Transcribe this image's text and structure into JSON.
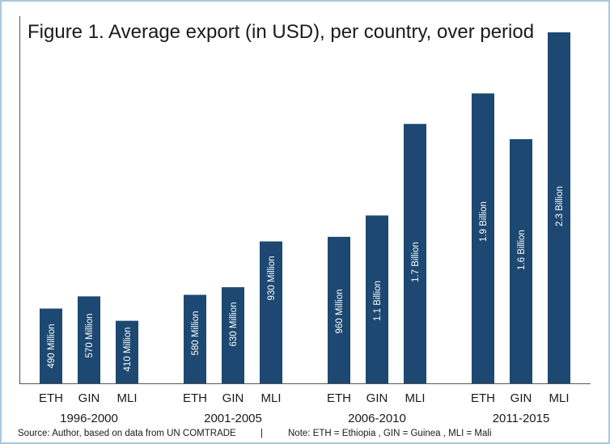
{
  "chart_data": {
    "type": "bar",
    "title": "Figure 1.  Average export (in USD), per country, over period",
    "xlabel": "",
    "ylabel": "",
    "ylim": [
      0,
      2.3
    ],
    "unit": "billion USD",
    "bar_color": "#1c4871",
    "groups": [
      {
        "period": "1996-2000",
        "bars": [
          {
            "country": "ETH",
            "value": 0.49,
            "label": "490 Million"
          },
          {
            "country": "GIN",
            "value": 0.57,
            "label": "570 Million"
          },
          {
            "country": "MLI",
            "value": 0.41,
            "label": "410 Million"
          }
        ]
      },
      {
        "period": "2001-2005",
        "bars": [
          {
            "country": "ETH",
            "value": 0.58,
            "label": "580 Million"
          },
          {
            "country": "GIN",
            "value": 0.63,
            "label": "630 Million"
          },
          {
            "country": "MLI",
            "value": 0.93,
            "label": "930 Million"
          }
        ]
      },
      {
        "period": "2006-2010",
        "bars": [
          {
            "country": "ETH",
            "value": 0.96,
            "label": "960 Million"
          },
          {
            "country": "GIN",
            "value": 1.1,
            "label": "1.1 Billion"
          },
          {
            "country": "MLI",
            "value": 1.7,
            "label": "1.7 Billion"
          }
        ]
      },
      {
        "period": "2011-2015",
        "bars": [
          {
            "country": "ETH",
            "value": 1.9,
            "label": "1.9 Billion"
          },
          {
            "country": "GIN",
            "value": 1.6,
            "label": "1.6 Billion"
          },
          {
            "country": "MLI",
            "value": 2.3,
            "label": "2.3 Billion"
          }
        ]
      }
    ],
    "grid": false,
    "legend": "none"
  },
  "footer": {
    "source": "Source: Author, based on data from UN COMTRADE",
    "separator": "|",
    "note": "Note:  ETH = Ethiopia , GIN = Guinea , MLI = Mali"
  }
}
